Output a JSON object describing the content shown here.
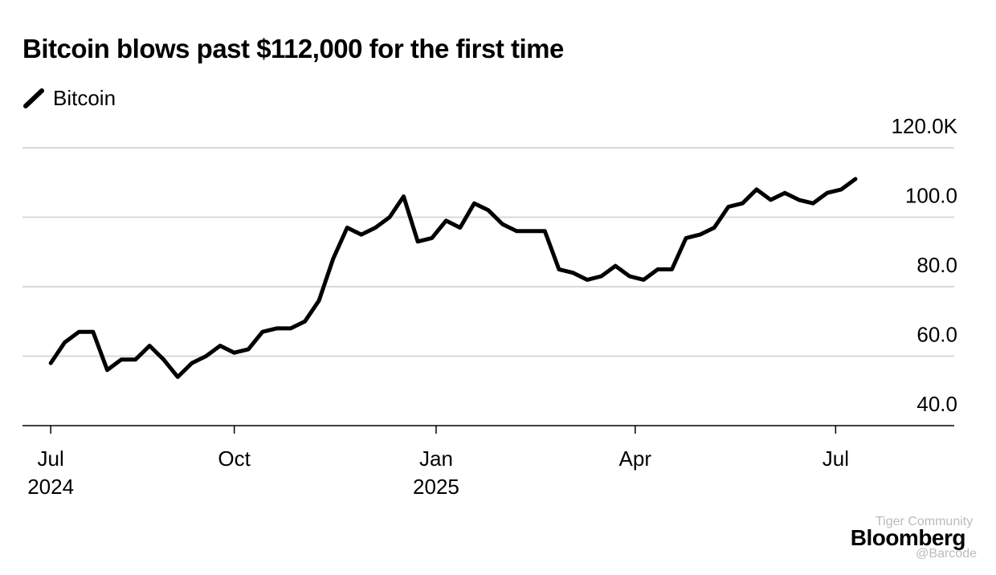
{
  "chart_data": {
    "type": "line",
    "title": "Bitcoin blows past $112,000 for the first time",
    "source": "Bloomberg",
    "watermark": [
      "Tiger Community",
      "@Barcode"
    ],
    "series": [
      {
        "name": "Bitcoin",
        "color": "#000000",
        "values": [
          58,
          64,
          67,
          67,
          56,
          59,
          59,
          63,
          59,
          54,
          58,
          60,
          63,
          61,
          62,
          67,
          68,
          68,
          70,
          76,
          88,
          97,
          95,
          97,
          100,
          106,
          93,
          94,
          99,
          97,
          104,
          102,
          98,
          96,
          96,
          96,
          85,
          84,
          82,
          83,
          86,
          83,
          82,
          85,
          85,
          94,
          95,
          97,
          103,
          104,
          108,
          105,
          107,
          105,
          104,
          107,
          108,
          111
        ]
      }
    ],
    "xlim": [
      -2,
      64
    ],
    "xticks": [
      {
        "value": 0,
        "label": "Jul",
        "sublabel": "2024"
      },
      {
        "value": 13,
        "label": "Oct"
      },
      {
        "value": 27.3,
        "label": "Jan",
        "sublabel": "2025"
      },
      {
        "value": 41.4,
        "label": "Apr"
      },
      {
        "value": 55.6,
        "label": "Jul"
      }
    ],
    "ylim": [
      40,
      120
    ],
    "yticks": [
      {
        "value": 40,
        "label": "40.0"
      },
      {
        "value": 60,
        "label": "60.0"
      },
      {
        "value": 80,
        "label": "80.0"
      },
      {
        "value": 100,
        "label": "100.0"
      },
      {
        "value": 120,
        "label": "120.0K"
      }
    ],
    "grid": true
  }
}
